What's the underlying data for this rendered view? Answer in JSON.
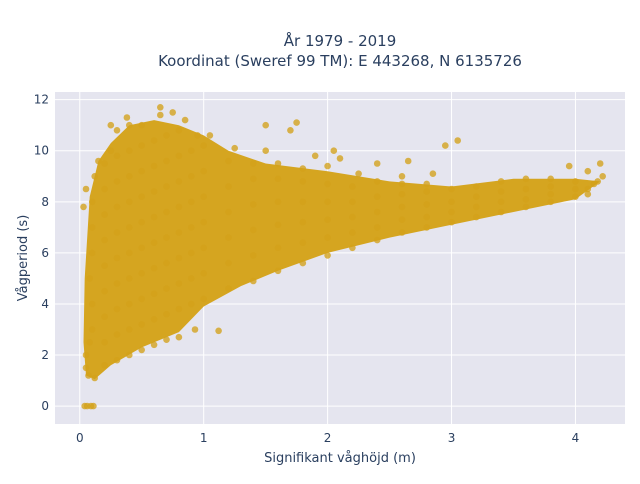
{
  "chart_data": {
    "type": "scatter",
    "title_line1": "År 1979 - 2019",
    "title_line2": "Koordinat (Sweref 99 TM): E 443268, N 6135726",
    "xlabel": "Signifikant våghöjd (m)",
    "ylabel": "Vågperiod (s)",
    "xlim": [
      -0.2,
      4.4
    ],
    "ylim": [
      -0.7,
      12.3
    ],
    "x_ticks": [
      0,
      1,
      2,
      3,
      4
    ],
    "x_tick_labels": [
      "0",
      "1",
      "2",
      "3",
      "4"
    ],
    "y_ticks": [
      0,
      2,
      4,
      6,
      8,
      10,
      12
    ],
    "y_tick_labels": [
      "0",
      "2",
      "4",
      "6",
      "8",
      "10",
      "12"
    ],
    "grid": true,
    "legend": "none",
    "marker_color": "#d4a219",
    "plot_background": "#e5e5ef",
    "points": [
      [
        0.05,
        1.5
      ],
      [
        0.05,
        2.0
      ],
      [
        0.08,
        2.5
      ],
      [
        0.1,
        3.0
      ],
      [
        0.1,
        4.0
      ],
      [
        0.08,
        5.0
      ],
      [
        0.1,
        6.0
      ],
      [
        0.1,
        7.0
      ],
      [
        0.1,
        8.0
      ],
      [
        0.12,
        9.0
      ],
      [
        0.15,
        9.6
      ],
      [
        0.05,
        8.5
      ],
      [
        0.03,
        7.8
      ],
      [
        0.07,
        1.2
      ],
      [
        0.12,
        1.1
      ],
      [
        0.2,
        1.6
      ],
      [
        0.2,
        2.5
      ],
      [
        0.2,
        3.5
      ],
      [
        0.2,
        4.5
      ],
      [
        0.2,
        5.5
      ],
      [
        0.2,
        6.5
      ],
      [
        0.2,
        7.5
      ],
      [
        0.2,
        8.5
      ],
      [
        0.2,
        9.5
      ],
      [
        0.25,
        10.0
      ],
      [
        0.3,
        1.8
      ],
      [
        0.3,
        2.8
      ],
      [
        0.3,
        3.8
      ],
      [
        0.3,
        4.8
      ],
      [
        0.3,
        5.8
      ],
      [
        0.3,
        6.8
      ],
      [
        0.3,
        7.8
      ],
      [
        0.3,
        8.8
      ],
      [
        0.3,
        9.8
      ],
      [
        0.3,
        10.8
      ],
      [
        0.25,
        11.0
      ],
      [
        0.4,
        2.0
      ],
      [
        0.4,
        3.0
      ],
      [
        0.4,
        4.0
      ],
      [
        0.4,
        5.0
      ],
      [
        0.4,
        6.0
      ],
      [
        0.4,
        7.0
      ],
      [
        0.4,
        8.0
      ],
      [
        0.4,
        9.0
      ],
      [
        0.4,
        10.0
      ],
      [
        0.4,
        11.0
      ],
      [
        0.38,
        11.3
      ],
      [
        0.5,
        2.2
      ],
      [
        0.5,
        3.2
      ],
      [
        0.5,
        4.2
      ],
      [
        0.5,
        5.2
      ],
      [
        0.5,
        6.2
      ],
      [
        0.5,
        7.2
      ],
      [
        0.5,
        8.2
      ],
      [
        0.5,
        9.2
      ],
      [
        0.5,
        10.2
      ],
      [
        0.5,
        11.0
      ],
      [
        0.6,
        2.4
      ],
      [
        0.6,
        3.4
      ],
      [
        0.6,
        4.4
      ],
      [
        0.6,
        5.4
      ],
      [
        0.6,
        6.4
      ],
      [
        0.6,
        7.4
      ],
      [
        0.6,
        8.4
      ],
      [
        0.6,
        9.4
      ],
      [
        0.6,
        10.4
      ],
      [
        0.65,
        11.4
      ],
      [
        0.7,
        2.6
      ],
      [
        0.7,
        3.6
      ],
      [
        0.7,
        4.6
      ],
      [
        0.7,
        5.6
      ],
      [
        0.7,
        6.6
      ],
      [
        0.7,
        7.6
      ],
      [
        0.7,
        8.6
      ],
      [
        0.7,
        9.6
      ],
      [
        0.7,
        10.6
      ],
      [
        0.65,
        11.7
      ],
      [
        0.75,
        11.5
      ],
      [
        0.8,
        2.7
      ],
      [
        0.8,
        3.8
      ],
      [
        0.8,
        4.8
      ],
      [
        0.8,
        5.8
      ],
      [
        0.8,
        6.8
      ],
      [
        0.8,
        7.8
      ],
      [
        0.8,
        8.8
      ],
      [
        0.8,
        9.8
      ],
      [
        0.8,
        10.8
      ],
      [
        0.85,
        11.2
      ],
      [
        0.9,
        4.0
      ],
      [
        0.9,
        5.0
      ],
      [
        0.9,
        6.0
      ],
      [
        0.9,
        7.0
      ],
      [
        0.9,
        8.0
      ],
      [
        0.9,
        9.0
      ],
      [
        0.9,
        10.0
      ],
      [
        0.95,
        10.6
      ],
      [
        0.93,
        3.0
      ],
      [
        1.0,
        4.2
      ],
      [
        1.0,
        5.2
      ],
      [
        1.0,
        6.2
      ],
      [
        1.0,
        7.2
      ],
      [
        1.0,
        8.2
      ],
      [
        1.0,
        9.2
      ],
      [
        1.0,
        10.2
      ],
      [
        1.05,
        10.6
      ],
      [
        1.12,
        2.95
      ],
      [
        1.2,
        4.6
      ],
      [
        1.2,
        5.6
      ],
      [
        1.2,
        6.6
      ],
      [
        1.2,
        7.6
      ],
      [
        1.2,
        8.6
      ],
      [
        1.2,
        9.6
      ],
      [
        1.25,
        10.1
      ],
      [
        1.4,
        4.9
      ],
      [
        1.4,
        5.9
      ],
      [
        1.4,
        6.9
      ],
      [
        1.4,
        7.9
      ],
      [
        1.4,
        8.9
      ],
      [
        1.4,
        9.5
      ],
      [
        1.5,
        10.0
      ],
      [
        1.5,
        11.0
      ],
      [
        1.7,
        10.8
      ],
      [
        1.75,
        11.1
      ],
      [
        1.6,
        5.3
      ],
      [
        1.6,
        6.2
      ],
      [
        1.6,
        7.1
      ],
      [
        1.6,
        8.0
      ],
      [
        1.6,
        8.9
      ],
      [
        1.6,
        9.5
      ],
      [
        1.8,
        5.6
      ],
      [
        1.8,
        6.4
      ],
      [
        1.8,
        7.2
      ],
      [
        1.8,
        8.0
      ],
      [
        1.8,
        8.8
      ],
      [
        1.8,
        9.3
      ],
      [
        1.9,
        9.8
      ],
      [
        2.0,
        5.9
      ],
      [
        2.0,
        6.6
      ],
      [
        2.0,
        7.3
      ],
      [
        2.0,
        8.0
      ],
      [
        2.0,
        8.7
      ],
      [
        2.0,
        9.4
      ],
      [
        2.05,
        10.0
      ],
      [
        2.1,
        9.7
      ],
      [
        2.2,
        6.2
      ],
      [
        2.2,
        6.8
      ],
      [
        2.2,
        7.4
      ],
      [
        2.2,
        8.0
      ],
      [
        2.2,
        8.6
      ],
      [
        2.25,
        9.1
      ],
      [
        2.4,
        9.5
      ],
      [
        2.4,
        6.5
      ],
      [
        2.4,
        7.0
      ],
      [
        2.4,
        7.6
      ],
      [
        2.4,
        8.2
      ],
      [
        2.4,
        8.8
      ],
      [
        2.6,
        9.0
      ],
      [
        2.65,
        9.6
      ],
      [
        2.6,
        6.8
      ],
      [
        2.6,
        7.3
      ],
      [
        2.6,
        7.8
      ],
      [
        2.6,
        8.3
      ],
      [
        2.6,
        8.7
      ],
      [
        2.8,
        7.0
      ],
      [
        2.8,
        7.4
      ],
      [
        2.8,
        7.9
      ],
      [
        2.8,
        8.4
      ],
      [
        2.85,
        9.1
      ],
      [
        2.8,
        8.7
      ],
      [
        3.0,
        7.2
      ],
      [
        3.0,
        7.6
      ],
      [
        3.0,
        8.0
      ],
      [
        3.0,
        8.5
      ],
      [
        2.95,
        10.2
      ],
      [
        3.05,
        10.4
      ],
      [
        3.2,
        7.4
      ],
      [
        3.2,
        7.8
      ],
      [
        3.2,
        8.2
      ],
      [
        3.2,
        8.6
      ],
      [
        3.4,
        7.6
      ],
      [
        3.4,
        8.0
      ],
      [
        3.4,
        8.4
      ],
      [
        3.4,
        8.8
      ],
      [
        3.6,
        7.8
      ],
      [
        3.6,
        8.1
      ],
      [
        3.6,
        8.5
      ],
      [
        3.6,
        8.9
      ],
      [
        3.8,
        8.0
      ],
      [
        3.8,
        8.3
      ],
      [
        3.8,
        8.6
      ],
      [
        3.8,
        8.9
      ],
      [
        4.0,
        8.2
      ],
      [
        4.0,
        8.5
      ],
      [
        4.0,
        8.8
      ],
      [
        3.95,
        9.4
      ],
      [
        4.1,
        9.2
      ],
      [
        4.1,
        8.5
      ],
      [
        4.15,
        8.7
      ],
      [
        4.2,
        9.5
      ],
      [
        4.22,
        9.0
      ],
      [
        4.18,
        8.8
      ],
      [
        4.1,
        8.3
      ],
      [
        0.04,
        0.0
      ],
      [
        0.06,
        0.0
      ],
      [
        0.09,
        0.0
      ],
      [
        0.11,
        0.0
      ]
    ]
  }
}
